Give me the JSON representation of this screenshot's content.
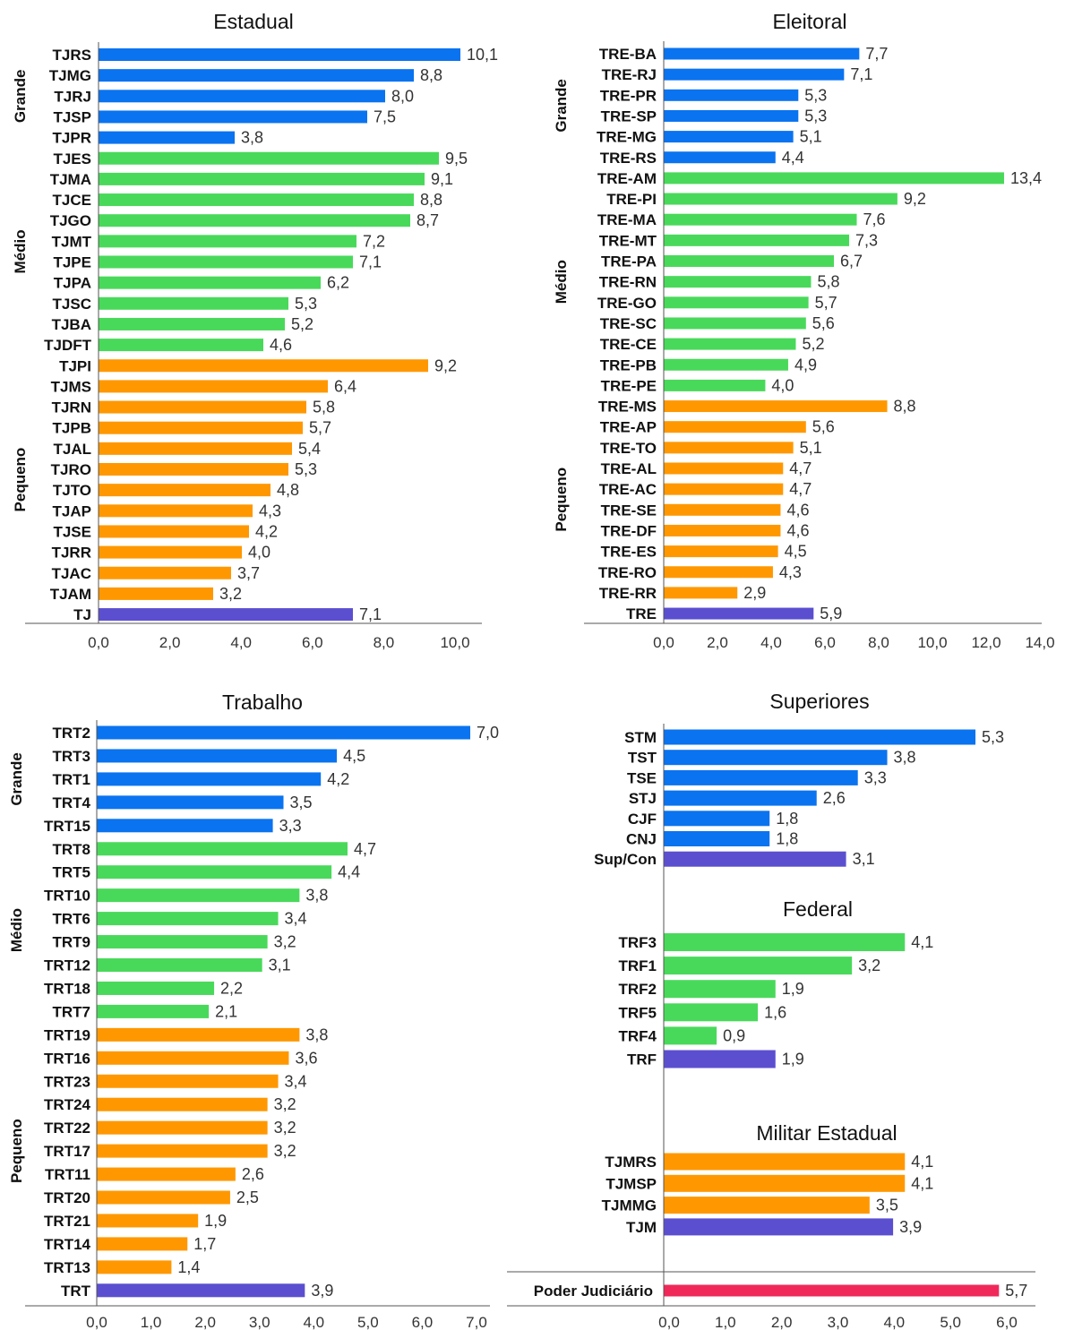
{
  "colors": {
    "grande": "#0a73f0",
    "medio": "#49d95a",
    "pequeno": "#ff9800",
    "total": "#5b4fd0",
    "judiciario": "#f0285a"
  },
  "chart_data": [
    {
      "type": "bar",
      "title": "Estadual",
      "categories": [
        "TJRS",
        "TJMG",
        "TJRJ",
        "TJSP",
        "TJPR",
        "TJES",
        "TJMA",
        "TJCE",
        "TJGO",
        "TJMT",
        "TJPE",
        "TJPA",
        "TJSC",
        "TJBA",
        "TJDFT",
        "TJPI",
        "TJMS",
        "TJRN",
        "TJPB",
        "TJAL",
        "TJRO",
        "TJTO",
        "TJAP",
        "TJSE",
        "TJRR",
        "TJAC",
        "TJAM",
        "TJ"
      ],
      "values": [
        10.1,
        8.8,
        8.0,
        7.5,
        3.8,
        9.5,
        9.1,
        8.8,
        8.7,
        7.2,
        7.1,
        6.2,
        5.3,
        5.2,
        4.6,
        9.2,
        6.4,
        5.8,
        5.7,
        5.4,
        5.3,
        4.8,
        4.3,
        4.2,
        4.0,
        3.7,
        3.2,
        7.1
      ],
      "value_labels": [
        "10,1",
        "8,8",
        "8,0",
        "7,5",
        "3,8",
        "9,5",
        "9,1",
        "8,8",
        "8,7",
        "7,2",
        "7,1",
        "6,2",
        "5,3",
        "5,2",
        "4,6",
        "9,2",
        "6,4",
        "5,8",
        "5,7",
        "5,4",
        "5,3",
        "4,8",
        "4,3",
        "4,2",
        "4,0",
        "3,7",
        "3,2",
        "7,1"
      ],
      "groups": [
        "grande",
        "grande",
        "grande",
        "grande",
        "grande",
        "medio",
        "medio",
        "medio",
        "medio",
        "medio",
        "medio",
        "medio",
        "medio",
        "medio",
        "medio",
        "pequeno",
        "pequeno",
        "pequeno",
        "pequeno",
        "pequeno",
        "pequeno",
        "pequeno",
        "pequeno",
        "pequeno",
        "pequeno",
        "pequeno",
        "pequeno",
        "total"
      ],
      "group_labels": [
        {
          "label": "Grande",
          "from": 0,
          "to": 4
        },
        {
          "label": "Médio",
          "from": 5,
          "to": 14
        },
        {
          "label": "Pequeno",
          "from": 15,
          "to": 26
        }
      ],
      "xlim": [
        0,
        10
      ],
      "xticks": [
        "0,0",
        "2,0",
        "4,0",
        "6,0",
        "8,0",
        "10,0"
      ]
    },
    {
      "type": "bar",
      "title": "Eleitoral",
      "categories": [
        "TRE-BA",
        "TRE-RJ",
        "TRE-PR",
        "TRE-SP",
        "TRE-MG",
        "TRE-RS",
        "TRE-AM",
        "TRE-PI",
        "TRE-MA",
        "TRE-MT",
        "TRE-PA",
        "TRE-RN",
        "TRE-GO",
        "TRE-SC",
        "TRE-CE",
        "TRE-PB",
        "TRE-PE",
        "TRE-MS",
        "TRE-AP",
        "TRE-TO",
        "TRE-AL",
        "TRE-AC",
        "TRE-SE",
        "TRE-DF",
        "TRE-ES",
        "TRE-RO",
        "TRE-RR",
        "TRE"
      ],
      "values": [
        7.7,
        7.1,
        5.3,
        5.3,
        5.1,
        4.4,
        13.4,
        9.2,
        7.6,
        7.3,
        6.7,
        5.8,
        5.7,
        5.6,
        5.2,
        4.9,
        4.0,
        8.8,
        5.6,
        5.1,
        4.7,
        4.7,
        4.6,
        4.6,
        4.5,
        4.3,
        2.9,
        5.9
      ],
      "value_labels": [
        "7,7",
        "7,1",
        "5,3",
        "5,3",
        "5,1",
        "4,4",
        "13,4",
        "9,2",
        "7,6",
        "7,3",
        "6,7",
        "5,8",
        "5,7",
        "5,6",
        "5,2",
        "4,9",
        "4,0",
        "8,8",
        "5,6",
        "5,1",
        "4,7",
        "4,7",
        "4,6",
        "4,6",
        "4,5",
        "4,3",
        "2,9",
        "5,9"
      ],
      "groups": [
        "grande",
        "grande",
        "grande",
        "grande",
        "grande",
        "grande",
        "medio",
        "medio",
        "medio",
        "medio",
        "medio",
        "medio",
        "medio",
        "medio",
        "medio",
        "medio",
        "medio",
        "pequeno",
        "pequeno",
        "pequeno",
        "pequeno",
        "pequeno",
        "pequeno",
        "pequeno",
        "pequeno",
        "pequeno",
        "pequeno",
        "total"
      ],
      "group_labels": [
        {
          "label": "Grande",
          "from": 0,
          "to": 5
        },
        {
          "label": "Médio",
          "from": 6,
          "to": 16
        },
        {
          "label": "Pequeno",
          "from": 17,
          "to": 26
        }
      ],
      "xlim": [
        0,
        14
      ],
      "xticks": [
        "0,0",
        "2,0",
        "4,0",
        "6,0",
        "8,0",
        "10,0",
        "12,0",
        "14,0"
      ]
    },
    {
      "type": "bar",
      "title": "Trabalho",
      "categories": [
        "TRT2",
        "TRT3",
        "TRT1",
        "TRT4",
        "TRT15",
        "TRT8",
        "TRT5",
        "TRT10",
        "TRT6",
        "TRT9",
        "TRT12",
        "TRT18",
        "TRT7",
        "TRT19",
        "TRT16",
        "TRT23",
        "TRT24",
        "TRT22",
        "TRT17",
        "TRT11",
        "TRT20",
        "TRT21",
        "TRT14",
        "TRT13",
        "TRT"
      ],
      "values": [
        7.0,
        4.5,
        4.2,
        3.5,
        3.3,
        4.7,
        4.4,
        3.8,
        3.4,
        3.2,
        3.1,
        2.2,
        2.1,
        3.8,
        3.6,
        3.4,
        3.2,
        3.2,
        3.2,
        2.6,
        2.5,
        1.9,
        1.7,
        1.4,
        3.9
      ],
      "value_labels": [
        "7,0",
        "4,5",
        "4,2",
        "3,5",
        "3,3",
        "4,7",
        "4,4",
        "3,8",
        "3,4",
        "3,2",
        "3,1",
        "2,2",
        "2,1",
        "3,8",
        "3,6",
        "3,4",
        "3,2",
        "3,2",
        "3,2",
        "2,6",
        "2,5",
        "1,9",
        "1,7",
        "1,4",
        "3,9"
      ],
      "groups": [
        "grande",
        "grande",
        "grande",
        "grande",
        "grande",
        "medio",
        "medio",
        "medio",
        "medio",
        "medio",
        "medio",
        "medio",
        "medio",
        "pequeno",
        "pequeno",
        "pequeno",
        "pequeno",
        "pequeno",
        "pequeno",
        "pequeno",
        "pequeno",
        "pequeno",
        "pequeno",
        "pequeno",
        "total"
      ],
      "group_labels": [
        {
          "label": "Grande",
          "from": 0,
          "to": 4
        },
        {
          "label": "Médio",
          "from": 5,
          "to": 12
        },
        {
          "label": "Pequeno",
          "from": 13,
          "to": 23
        }
      ],
      "xlim": [
        0,
        7
      ],
      "xticks": [
        "0,0",
        "1,0",
        "2,0",
        "3,0",
        "4,0",
        "5,0",
        "6,0",
        "7,0"
      ]
    },
    {
      "type": "bar",
      "xlim": [
        0,
        6
      ],
      "xticks": [
        "0,0",
        "1,0",
        "2,0",
        "3,0",
        "4,0",
        "5,0",
        "6,0"
      ],
      "sections": [
        {
          "title": "Superiores",
          "categories": [
            "STM",
            "TST",
            "TSE",
            "STJ",
            "CJF",
            "CNJ",
            "Sup/Con"
          ],
          "values": [
            5.3,
            3.8,
            3.3,
            2.6,
            1.8,
            1.8,
            3.1
          ],
          "value_labels": [
            "5,3",
            "3,8",
            "3,3",
            "2,6",
            "1,8",
            "1,8",
            "3,1"
          ],
          "groups": [
            "grande",
            "grande",
            "grande",
            "grande",
            "grande",
            "grande",
            "total"
          ]
        },
        {
          "title": "Federal",
          "categories": [
            "TRF3",
            "TRF1",
            "TRF2",
            "TRF5",
            "TRF4",
            "TRF"
          ],
          "values": [
            4.1,
            3.2,
            1.9,
            1.6,
            0.9,
            1.9
          ],
          "value_labels": [
            "4,1",
            "3,2",
            "1,9",
            "1,6",
            "0,9",
            "1,9"
          ],
          "groups": [
            "medio",
            "medio",
            "medio",
            "medio",
            "medio",
            "total"
          ]
        },
        {
          "title": "Militar Estadual",
          "categories": [
            "TJMRS",
            "TJMSP",
            "TJMMG",
            "TJM"
          ],
          "values": [
            4.1,
            4.1,
            3.5,
            3.9
          ],
          "value_labels": [
            "4,1",
            "4,1",
            "3,5",
            "3,9"
          ],
          "groups": [
            "pequeno",
            "pequeno",
            "pequeno",
            "total"
          ]
        },
        {
          "title": "",
          "categories": [
            "Poder Judiciário"
          ],
          "values": [
            5.7
          ],
          "value_labels": [
            "5,7"
          ],
          "groups": [
            "judiciario"
          ]
        }
      ]
    }
  ]
}
